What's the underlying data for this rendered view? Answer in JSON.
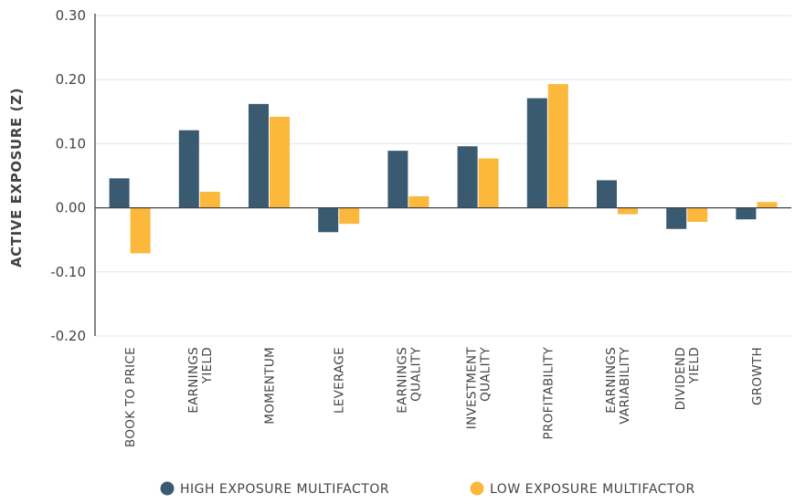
{
  "chart_data": {
    "type": "bar",
    "ylabel": "ACTIVE EXPOSURE (Z)",
    "ylim": [
      -0.2,
      0.3
    ],
    "yticks": [
      "0.30",
      "0.20",
      "0.10",
      "0.00",
      "-0.10",
      "-0.20"
    ],
    "ytick_values": [
      0.3,
      0.2,
      0.1,
      0.0,
      -0.1,
      -0.2
    ],
    "grid": true,
    "legend_position": "bottom",
    "categories": [
      [
        "BOOK TO PRICE"
      ],
      [
        "EARNINGS",
        "YIELD"
      ],
      [
        "MOMENTUM"
      ],
      [
        "LEVERAGE"
      ],
      [
        "EARNINGS",
        "QUALITY"
      ],
      [
        "INVESTMENT",
        "QUALITY"
      ],
      [
        "PROFITABILITY"
      ],
      [
        "EARNINGS",
        "VARIABILITY"
      ],
      [
        "DIVIDEND",
        "YIELD"
      ],
      [
        "GROWTH"
      ]
    ],
    "series": [
      {
        "name": "HIGH EXPOSURE MULTIFACTOR",
        "color": "#3a5a72",
        "values": [
          0.046,
          0.121,
          0.162,
          -0.038,
          0.089,
          0.096,
          0.171,
          0.043,
          -0.033,
          -0.018
        ]
      },
      {
        "name": "LOW EXPOSURE MULTIFACTOR",
        "color": "#fbb83a",
        "values": [
          -0.071,
          0.025,
          0.142,
          -0.025,
          0.018,
          0.077,
          0.193,
          -0.01,
          -0.022,
          0.009
        ]
      }
    ]
  }
}
